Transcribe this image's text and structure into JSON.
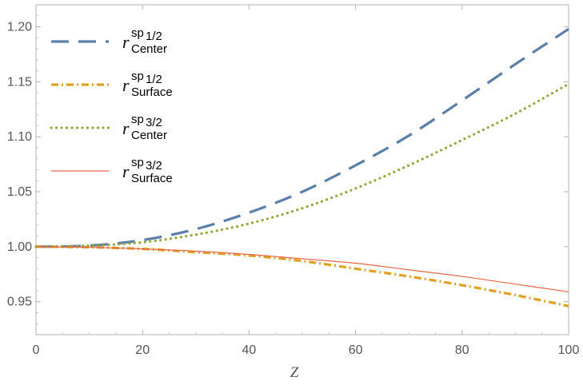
{
  "chart_data": {
    "type": "line",
    "title": "",
    "xlabel": "Z",
    "ylabel": "",
    "xlim": [
      0,
      100
    ],
    "ylim": [
      0.92,
      1.22
    ],
    "xticks": [
      0,
      20,
      40,
      60,
      80,
      100
    ],
    "xtick_labels": [
      "0",
      "20",
      "40",
      "60",
      "80",
      "100"
    ],
    "yticks": [
      0.95,
      1.0,
      1.05,
      1.1,
      1.15,
      1.2
    ],
    "ytick_labels": [
      "0.95",
      "1.00",
      "1.05",
      "1.10",
      "1.15",
      "1.20"
    ],
    "grid": false,
    "legend_position": "top-left",
    "x": [
      0,
      10,
      20,
      30,
      40,
      50,
      60,
      70,
      80,
      90,
      100
    ],
    "series": [
      {
        "name": "r_Center^{sp1/2}",
        "legend": {
          "base": "r",
          "sup": "sp",
          "sup_sub": "1/2",
          "sub": "Center"
        },
        "style": "dashed",
        "color": "#5b7fab",
        "values": [
          1.0,
          1.001,
          1.006,
          1.016,
          1.031,
          1.05,
          1.074,
          1.101,
          1.133,
          1.166,
          1.198
        ]
      },
      {
        "name": "r_Surface^{sp1/2}",
        "legend": {
          "base": "r",
          "sup": "sp",
          "sup_sub": "1/2",
          "sub": "Surface"
        },
        "style": "dashdot",
        "color": "#e0a020",
        "values": [
          1.0,
          0.9995,
          0.998,
          0.995,
          0.992,
          0.987,
          0.98,
          0.973,
          0.965,
          0.956,
          0.946
        ]
      },
      {
        "name": "r_Center^{sp3/2}",
        "legend": {
          "base": "r",
          "sup": "sp",
          "sup_sub": "3/2",
          "sub": "Center"
        },
        "style": "dotted",
        "color": "#90a838",
        "values": [
          1.0,
          1.001,
          1.004,
          1.011,
          1.021,
          1.035,
          1.053,
          1.074,
          1.097,
          1.121,
          1.148
        ]
      },
      {
        "name": "r_Surface^{sp3/2}",
        "legend": {
          "base": "r",
          "sup": "sp",
          "sup_sub": "3/2",
          "sub": "Surface"
        },
        "style": "solid",
        "color": "#e8664a",
        "values": [
          1.0,
          0.9995,
          0.998,
          0.996,
          0.993,
          0.989,
          0.985,
          0.979,
          0.973,
          0.966,
          0.959
        ]
      }
    ]
  }
}
